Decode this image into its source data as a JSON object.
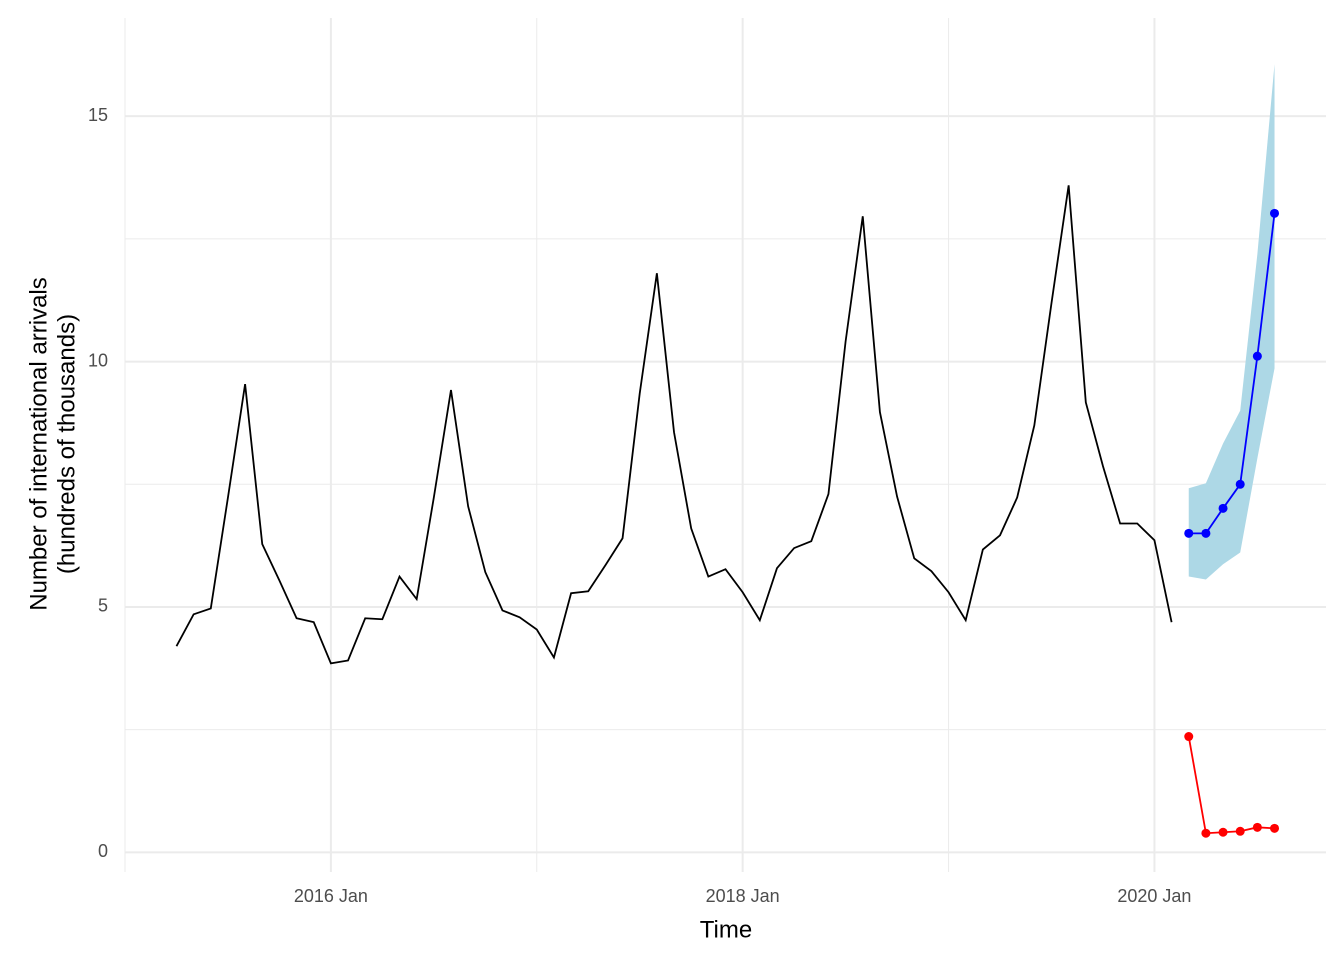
{
  "chart_data": {
    "type": "line",
    "xlabel": "Time",
    "ylabel": [
      "Number of international arrivals",
      "(hundreds of thousands)"
    ],
    "xlim": [
      "2015-01",
      "2020-11"
    ],
    "ylim": [
      -0.4,
      17
    ],
    "xticks": [
      {
        "value": "2016-01",
        "label": "2016 Jan"
      },
      {
        "value": "2018-01",
        "label": "2018 Jan"
      },
      {
        "value": "2020-01",
        "label": "2020 Jan"
      }
    ],
    "xminor": [
      "2015-01",
      "2017-01",
      "2019-01"
    ],
    "yticks": [
      0,
      5,
      10,
      15
    ],
    "yminor": [
      2.5,
      7.5,
      12.5
    ],
    "grid": true,
    "series": [
      {
        "color": "#000000",
        "points": false,
        "x": [
          "2015-04",
          "2015-05",
          "2015-06",
          "2015-07",
          "2015-08",
          "2015-09",
          "2015-10",
          "2015-11",
          "2015-12",
          "2016-01",
          "2016-02",
          "2016-03",
          "2016-04",
          "2016-05",
          "2016-06",
          "2016-07",
          "2016-08",
          "2016-09",
          "2016-10",
          "2016-11",
          "2016-12",
          "2017-01",
          "2017-02",
          "2017-03",
          "2017-04",
          "2017-05",
          "2017-06",
          "2017-07",
          "2017-08",
          "2017-09",
          "2017-10",
          "2017-11",
          "2017-12",
          "2018-01",
          "2018-02",
          "2018-03",
          "2018-04",
          "2018-05",
          "2018-06",
          "2018-07",
          "2018-08",
          "2018-09",
          "2018-10",
          "2018-11",
          "2018-12",
          "2019-01",
          "2019-02",
          "2019-03",
          "2019-04",
          "2019-05",
          "2019-06",
          "2019-07",
          "2019-08",
          "2019-09",
          "2019-10",
          "2019-11",
          "2019-12",
          "2020-01",
          "2020-02"
        ],
        "values": [
          4.2,
          4.85,
          4.97,
          7.23,
          9.54,
          6.28,
          5.54,
          4.77,
          4.69,
          3.85,
          3.91,
          4.77,
          4.75,
          5.62,
          5.16,
          7.23,
          9.42,
          7.05,
          5.71,
          4.93,
          4.79,
          4.54,
          3.97,
          5.28,
          5.32,
          5.85,
          6.4,
          9.35,
          11.8,
          8.56,
          6.6,
          5.62,
          5.77,
          5.3,
          4.73,
          5.79,
          6.2,
          6.34,
          7.3,
          10.41,
          12.96,
          8.97,
          7.25,
          5.99,
          5.73,
          5.3,
          4.73,
          6.17,
          6.46,
          7.23,
          8.7,
          11.19,
          13.59,
          9.17,
          7.87,
          6.7,
          6.7,
          6.36,
          4.69
        ]
      },
      {
        "color": "#0000ff",
        "points": true,
        "x": [
          "2020-03",
          "2020-04",
          "2020-05",
          "2020-06",
          "2020-07",
          "2020-08"
        ],
        "values": [
          6.5,
          6.5,
          7.01,
          7.5,
          10.11,
          13.02
        ],
        "band": {
          "color": "#add8e6",
          "lower": [
            5.62,
            5.56,
            5.87,
            6.11,
            8.03,
            9.86
          ],
          "upper": [
            7.42,
            7.52,
            8.33,
            9.0,
            12.19,
            16.06
          ]
        }
      },
      {
        "color": "#ff0000",
        "points": true,
        "x": [
          "2020-03",
          "2020-04",
          "2020-05",
          "2020-06",
          "2020-07",
          "2020-08"
        ],
        "values": [
          2.36,
          0.39,
          0.41,
          0.43,
          0.51,
          0.49
        ]
      }
    ]
  }
}
